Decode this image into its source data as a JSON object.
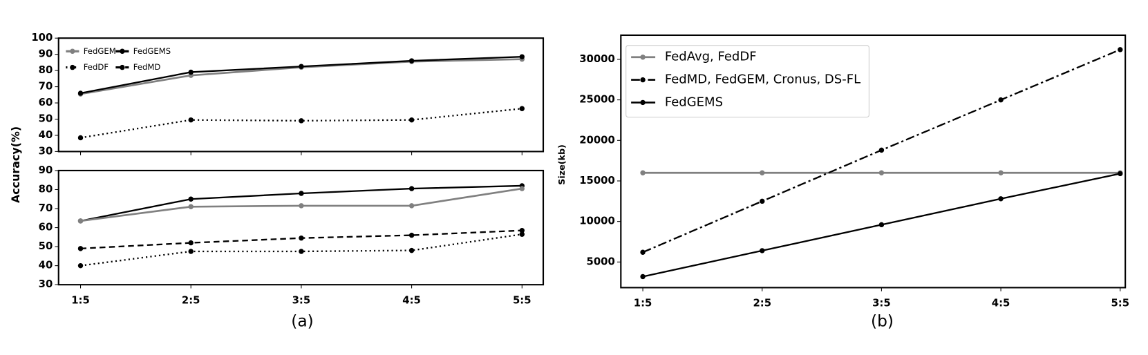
{
  "shared_ylabel": "Accuracy(%)",
  "captions": [
    "(a)",
    "(b)"
  ],
  "chart_data": [
    {
      "type": "line",
      "ylim": [
        30,
        100
      ],
      "yticks": [
        30,
        40,
        50,
        60,
        70,
        80,
        90,
        100
      ],
      "series": [
        {
          "name": "FedGEM",
          "color": "#808080",
          "dash": "solid",
          "values": [
            65.5,
            77,
            82,
            85.5,
            87
          ]
        },
        {
          "name": "FedDF",
          "color": "#000000",
          "dash": "dotted",
          "values": [
            38.5,
            49.5,
            49,
            49.5,
            56.5
          ]
        },
        {
          "name": "FedGEMS",
          "color": "#000000",
          "dash": "solid",
          "values": [
            66,
            79,
            82.5,
            86,
            88.5
          ]
        },
        {
          "name": "FedMD",
          "color": "#000000",
          "dash": "dashed",
          "values": [
            null,
            null,
            null,
            null,
            null
          ]
        }
      ]
    },
    {
      "type": "line",
      "categories": [
        "1:5",
        "2:5",
        "3:5",
        "4:5",
        "5:5"
      ],
      "ylim": [
        30,
        90
      ],
      "yticks": [
        30,
        40,
        50,
        60,
        70,
        80,
        90
      ],
      "series": [
        {
          "name": "FedGEMS",
          "color": "#000000",
          "dash": "solid",
          "values": [
            63.5,
            75,
            78,
            80.5,
            82
          ]
        },
        {
          "name": "FedGEM",
          "color": "#808080",
          "dash": "solid",
          "values": [
            63.5,
            71,
            71.5,
            71.5,
            80.5
          ]
        },
        {
          "name": "FedMD",
          "color": "#000000",
          "dash": "dashed",
          "values": [
            49,
            52,
            54.5,
            56,
            58.5
          ]
        },
        {
          "name": "FedDF",
          "color": "#000000",
          "dash": "dotted",
          "values": [
            40,
            47.5,
            47.5,
            48,
            56.5
          ]
        }
      ]
    },
    {
      "type": "line",
      "ylabel": "Size(kb)",
      "categories": [
        "1:5",
        "2:5",
        "3:5",
        "4:5",
        "5:5"
      ],
      "ylim": [
        1840,
        32980
      ],
      "yticks": [
        5000,
        10000,
        15000,
        20000,
        25000,
        30000
      ],
      "series": [
        {
          "name": "FedAvg, FedDF",
          "color": "#808080",
          "dash": "solid",
          "values": [
            16000,
            16000,
            16000,
            16000,
            16000
          ]
        },
        {
          "name": "FedMD, FedGEM, Cronus, DS-FL",
          "color": "#000000",
          "dash": "dashdot",
          "values": [
            6200,
            12500,
            18800,
            25000,
            31200
          ]
        },
        {
          "name": "FedGEMS",
          "color": "#000000",
          "dash": "solid",
          "values": [
            3200,
            6400,
            9600,
            12800,
            15900
          ]
        }
      ]
    }
  ]
}
